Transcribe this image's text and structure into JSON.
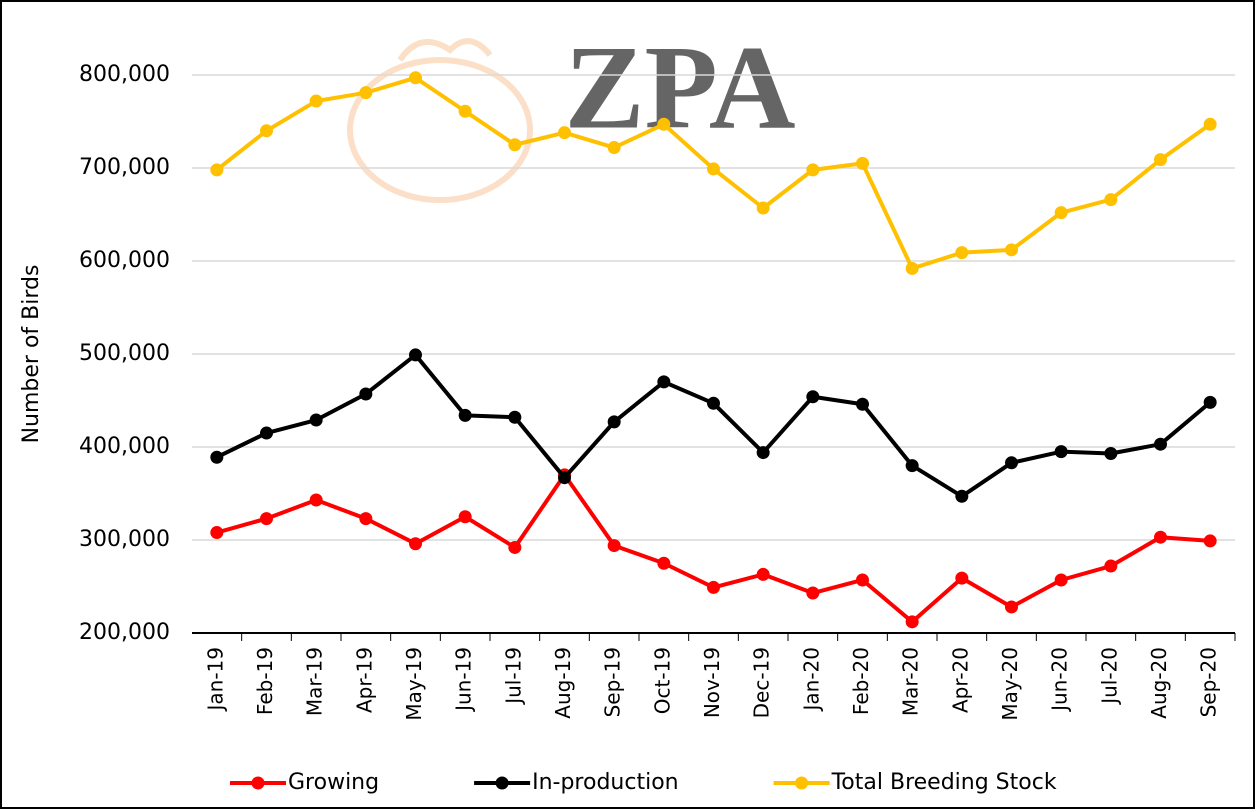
{
  "chart_data": {
    "type": "line",
    "watermark": "ZPA",
    "y_label": "Number of Birds",
    "categories": [
      "Jan-19",
      "Feb-19",
      "Mar-19",
      "Apr-19",
      "May-19",
      "Jun-19",
      "Jul-19",
      "Aug-19",
      "Sep-19",
      "Oct-19",
      "Nov-19",
      "Dec-19",
      "Jan-20",
      "Feb-20",
      "Mar-20",
      "Apr-20",
      "May-20",
      "Jun-20",
      "Jul-20",
      "Aug-20",
      "Sep-20"
    ],
    "series": [
      {
        "name": "Growing",
        "color": "#ff0000",
        "values": [
          308000,
          323000,
          343000,
          323000,
          296000,
          325000,
          292000,
          370000,
          294000,
          275000,
          249000,
          263000,
          243000,
          257000,
          212000,
          259000,
          228000,
          257000,
          272000,
          303000,
          299000
        ]
      },
      {
        "name": "In-production",
        "color": "#000000",
        "values": [
          389000,
          415000,
          429000,
          457000,
          499000,
          434000,
          432000,
          367000,
          427000,
          470000,
          447000,
          394000,
          454000,
          446000,
          380000,
          347000,
          383000,
          395000,
          393000,
          403000,
          448000
        ]
      },
      {
        "name": "Total Breeding Stock",
        "color": "#ffc000",
        "values": [
          698000,
          740000,
          772000,
          781000,
          797000,
          761000,
          725000,
          738000,
          722000,
          747000,
          699000,
          657000,
          698000,
          705000,
          592000,
          609000,
          612000,
          652000,
          666000,
          709000,
          747000
        ]
      }
    ],
    "ylim": [
      200000,
      800000
    ],
    "yticks": [
      {
        "value": 200000,
        "label": "200,000"
      },
      {
        "value": 300000,
        "label": "300,000"
      },
      {
        "value": 400000,
        "label": "400,000"
      },
      {
        "value": 500000,
        "label": "500,000"
      },
      {
        "value": 600000,
        "label": "600,000"
      },
      {
        "value": 700000,
        "label": "700,000"
      },
      {
        "value": 800000,
        "label": "800,000"
      }
    ],
    "grid": true,
    "legend": "bottom"
  }
}
